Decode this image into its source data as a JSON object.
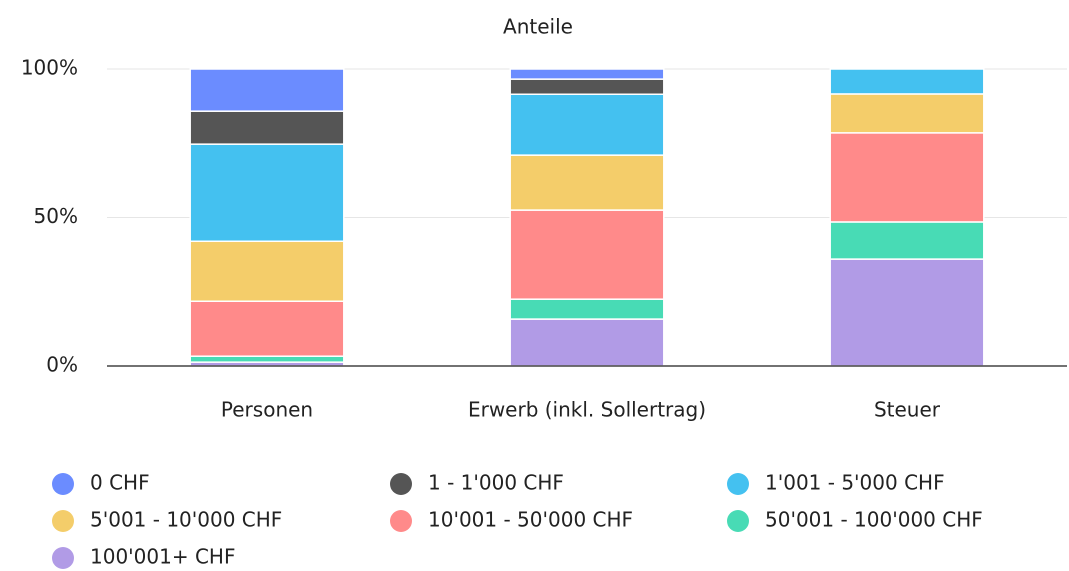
{
  "chart_data": {
    "type": "stacked_bar",
    "title": "Anteile",
    "categories": [
      "Personen",
      "Erwerb (inkl. Sollertrag)",
      "Steuer"
    ],
    "series": [
      {
        "name": "100'001+ CHF",
        "color": "#b19be6",
        "values": [
          1.3,
          15.8,
          36
        ]
      },
      {
        "name": "50'001 - 100'000 CHF",
        "color": "#48dbb5",
        "values": [
          2,
          6.7,
          12.5
        ]
      },
      {
        "name": "10'001 - 50'000 CHF",
        "color": "#ff8a8a",
        "values": [
          18.5,
          30,
          30
        ]
      },
      {
        "name": "5'001 - 10'000 CHF",
        "color": "#f4cd6a",
        "values": [
          20.2,
          18.5,
          13.1
        ]
      },
      {
        "name": "1'001 - 5'000 CHF",
        "color": "#44c1f0",
        "values": [
          32.7,
          20.5,
          8.4
        ]
      },
      {
        "name": "1 - 1'000 CHF",
        "color": "#555555",
        "values": [
          11.1,
          5.1,
          0
        ]
      },
      {
        "name": "0 CHF",
        "color": "#6b8cff",
        "values": [
          14.2,
          3.4,
          0
        ]
      }
    ],
    "legend_order": [
      6,
      5,
      4,
      3,
      2,
      1,
      0
    ],
    "ylim": [
      0,
      100
    ],
    "yticks": [
      {
        "value": 0,
        "label": "0%"
      },
      {
        "value": 50,
        "label": "50%"
      },
      {
        "value": 100,
        "label": "100%"
      }
    ],
    "grid": true
  }
}
